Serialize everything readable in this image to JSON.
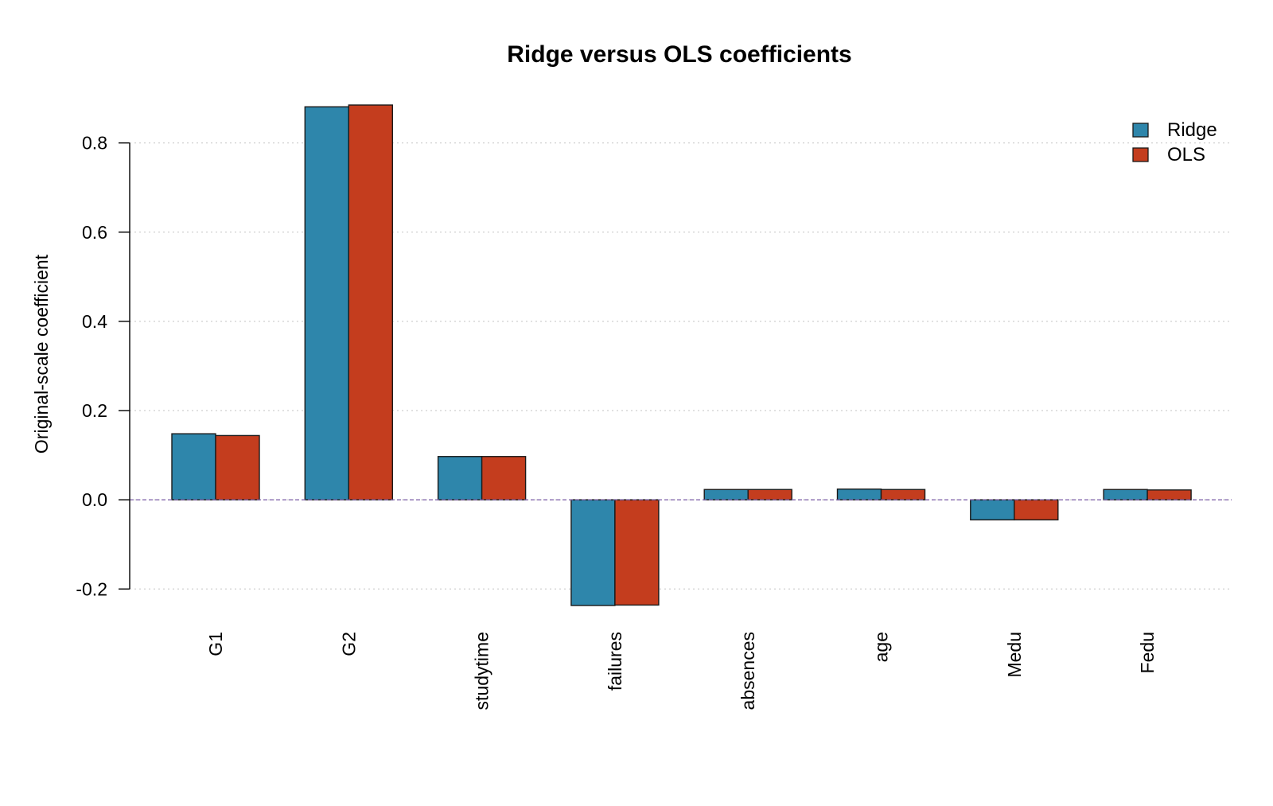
{
  "chart_data": {
    "type": "bar",
    "title": "Ridge versus OLS coefficients",
    "xlabel": "",
    "ylabel": "Original-scale coefficient",
    "categories": [
      "G1",
      "G2",
      "studytime",
      "failures",
      "absences",
      "age",
      "Medu",
      "Fedu"
    ],
    "series": [
      {
        "name": "Ridge",
        "color": "#2E86AB",
        "values": [
          0.148,
          0.881,
          0.097,
          -0.237,
          0.023,
          0.024,
          -0.045,
          0.023
        ]
      },
      {
        "name": "OLS",
        "color": "#C43D1E",
        "values": [
          0.144,
          0.885,
          0.097,
          -0.236,
          0.023,
          0.023,
          -0.045,
          0.022
        ]
      }
    ],
    "ylim": [
      -0.237,
      0.885
    ],
    "yticks": [
      -0.2,
      0.0,
      0.2,
      0.4,
      0.6,
      0.8
    ],
    "ytick_labels": [
      "-0.2",
      "0.0",
      "0.2",
      "0.4",
      "0.6",
      "0.8"
    ],
    "grid": "horizontal-dotted",
    "reference_line": {
      "y": 0,
      "color": "#7B5EA7",
      "style": "dashed"
    },
    "legend_position": "top-right"
  }
}
